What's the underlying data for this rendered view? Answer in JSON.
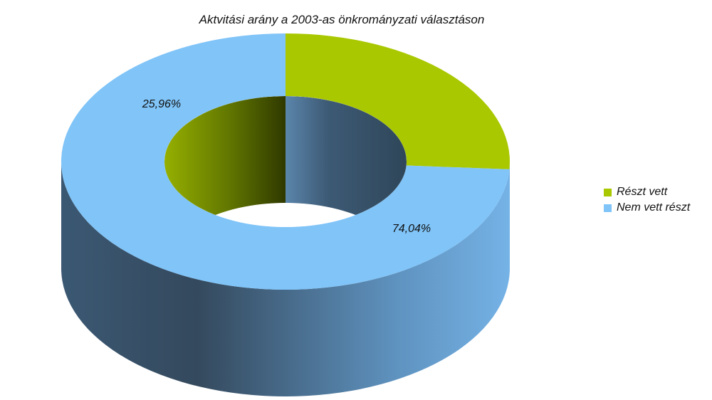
{
  "chart_data": {
    "type": "pie",
    "variant": "3d-doughnut",
    "title": "Aktvitási arány a 2003-as önkromány­zati választáson",
    "slices": [
      {
        "name": "Részt vett",
        "value": 25.96,
        "label": "25,96%",
        "color": "#aac800"
      },
      {
        "name": "Nem vett részt",
        "value": 74.04,
        "label": "74,04%",
        "color": "#80c4f8"
      }
    ],
    "legend_position": "right"
  }
}
